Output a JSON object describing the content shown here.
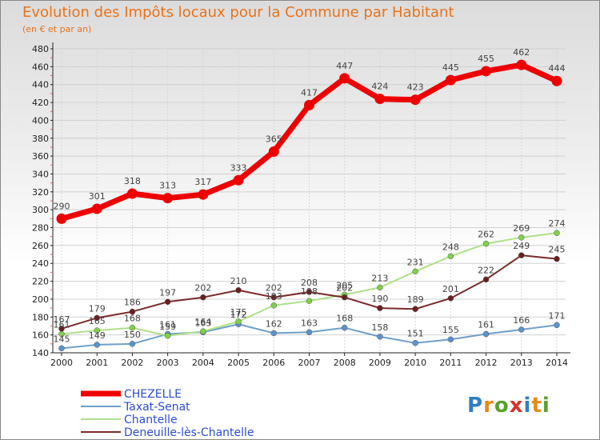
{
  "title": "Evolution des Impôts locaux pour la Commune par Habitant",
  "subtitle": "(en € et par an)",
  "logo": {
    "text": "Proxiti",
    "colors": [
      "#2f7fc4",
      "#e38b1a",
      "#5aa02c",
      "#d6342c",
      "#2f7fc4",
      "#e38b1a",
      "#5aa02c"
    ]
  },
  "chart_data": {
    "type": "line",
    "title": "Evolution des Impôts locaux pour la Commune par Habitant",
    "subtitle": "(en € et par an)",
    "xlabel": "",
    "ylabel": "",
    "x": [
      "2000",
      "2001",
      "2002",
      "2003",
      "2004",
      "2005",
      "2006",
      "2007",
      "2008",
      "2009",
      "2010",
      "2011",
      "2012",
      "2013",
      "2014"
    ],
    "ylim": [
      140,
      480
    ],
    "yticks": [
      140,
      160,
      180,
      200,
      220,
      240,
      260,
      280,
      300,
      320,
      340,
      360,
      380,
      400,
      420,
      440,
      460,
      480
    ],
    "grid": true,
    "legend": "bottom-left",
    "series": [
      {
        "name": "CHEZELLE",
        "color": "#ee0000",
        "point_color": "#ee0000",
        "values": [
          290,
          301,
          318,
          313,
          317,
          333,
          365,
          417,
          447,
          424,
          423,
          445,
          455,
          462,
          444
        ]
      },
      {
        "name": "Taxat-Senat",
        "color": "#6f9fc9",
        "point_color": "#5b93cc",
        "values": [
          145,
          149,
          150,
          161,
          163,
          172,
          162,
          163,
          168,
          158,
          151,
          155,
          161,
          166,
          171
        ]
      },
      {
        "name": "Chantelle",
        "color": "#aee08a",
        "point_color": "#7fd14a",
        "values": [
          161,
          165,
          168,
          159,
          164,
          175,
          193,
          198,
          205,
          213,
          231,
          248,
          262,
          269,
          274
        ]
      },
      {
        "name": "Deneuille-lès-Chantelle",
        "color": "#7a2a2a",
        "point_color": "#6a1f1f",
        "values": [
          167,
          179,
          186,
          197,
          202,
          210,
          202,
          208,
          202,
          190,
          189,
          201,
          222,
          249,
          245
        ]
      }
    ]
  }
}
